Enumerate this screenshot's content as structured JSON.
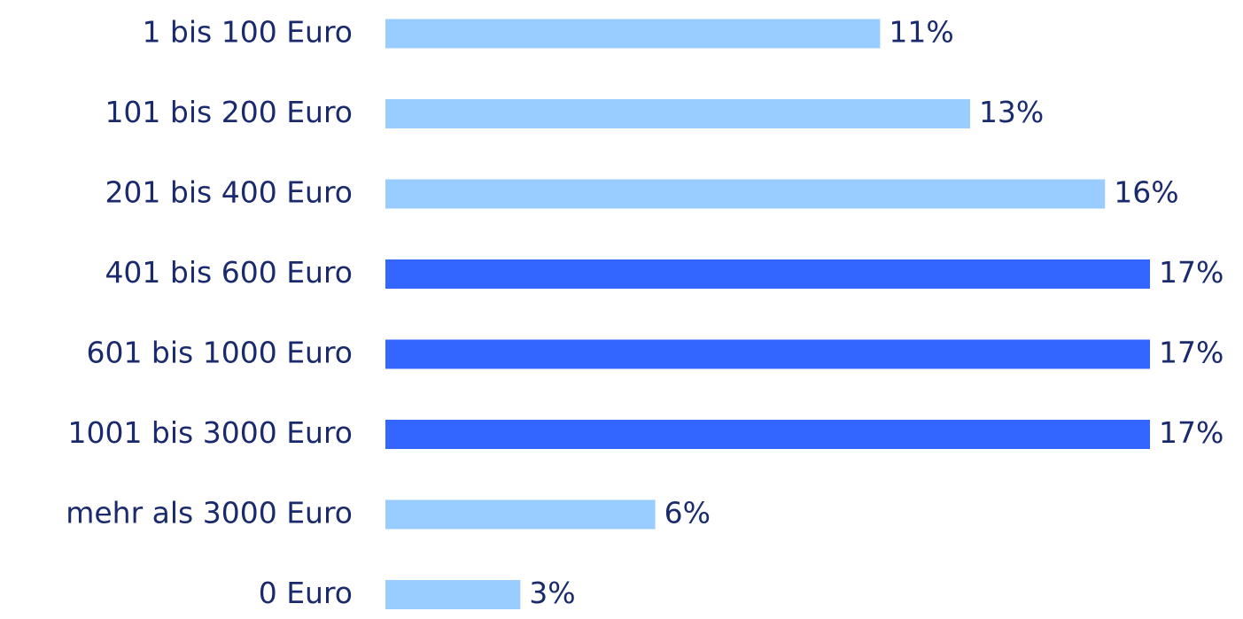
{
  "chart_data": {
    "type": "bar",
    "orientation": "horizontal",
    "categories": [
      "1 bis 100 Euro",
      "101 bis 200 Euro",
      "201 bis 400 Euro",
      "401 bis 600 Euro",
      "601 bis 1000 Euro",
      "1001 bis 3000 Euro",
      "mehr als 3000 Euro",
      "0 Euro"
    ],
    "values": [
      11,
      13,
      16,
      17,
      17,
      17,
      6,
      3
    ],
    "value_labels": [
      "11%",
      "13%",
      "16%",
      "17%",
      "17%",
      "17%",
      "6%",
      "3%"
    ],
    "colors": [
      "#99ccff",
      "#99ccff",
      "#99ccff",
      "#3366ff",
      "#3366ff",
      "#3366ff",
      "#99ccff",
      "#99ccff"
    ]
  }
}
